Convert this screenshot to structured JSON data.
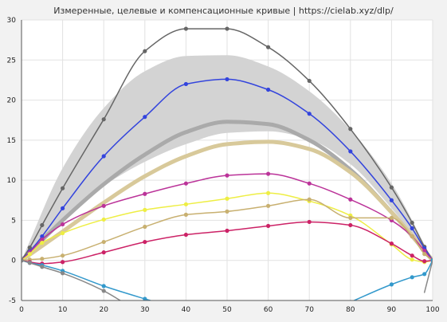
{
  "chart_data": {
    "type": "line",
    "title": "Измеренные, целевые и компенсационные кривые | https://cielab.xyz/dlp/",
    "xlabel": "",
    "ylabel": "",
    "xlim": [
      0,
      100
    ],
    "ylim": [
      -5,
      30
    ],
    "x_ticks": [
      0,
      10,
      20,
      30,
      40,
      50,
      60,
      70,
      80,
      90,
      100
    ],
    "y_ticks": [
      -5,
      0,
      5,
      10,
      15,
      20,
      25,
      30
    ],
    "grid": true,
    "band": {
      "x": [
        0,
        10,
        20,
        30,
        40,
        50,
        60,
        70,
        80,
        90,
        100
      ],
      "upper": [
        0,
        11.5,
        19,
        23.6,
        25.5,
        25.6,
        24.2,
        21.1,
        16.3,
        9.6,
        0
      ],
      "lower": [
        0,
        5.3,
        9.3,
        12.3,
        14.5,
        15.9,
        16.1,
        15.1,
        12.0,
        6.5,
        0
      ],
      "color": "#d3d3d3"
    },
    "series": [
      {
        "x": [
          0,
          10,
          20,
          30,
          40,
          50,
          60,
          70,
          80,
          90,
          100
        ],
        "y": [
          0,
          5.0,
          9.5,
          13.2,
          16.0,
          17.3,
          17.0,
          15.0,
          11.3,
          6.0,
          0
        ],
        "color": "#aaaaaa",
        "width": 5,
        "markers": false
      },
      {
        "x": [
          0,
          10,
          20,
          30,
          40,
          50,
          60,
          70,
          80,
          90,
          100
        ],
        "y": [
          0,
          3.6,
          7.2,
          10.5,
          13.0,
          14.5,
          14.8,
          13.9,
          11.0,
          6.0,
          0
        ],
        "color": "#d8c99a",
        "width": 5,
        "markers": false
      },
      {
        "x": [
          0,
          2,
          5,
          10,
          20,
          30,
          40,
          50,
          60,
          70,
          80,
          90,
          95,
          98,
          100
        ],
        "y": [
          0,
          1.6,
          4.4,
          9.0,
          17.6,
          26.1,
          28.9,
          28.9,
          26.6,
          22.4,
          16.4,
          9.1,
          4.7,
          1.7,
          0
        ],
        "color": "#666666",
        "width": 1.5,
        "markers": true
      },
      {
        "x": [
          0,
          2,
          5,
          10,
          20,
          30,
          40,
          50,
          60,
          70,
          80,
          90,
          95,
          98,
          100
        ],
        "y": [
          0,
          1.1,
          3.0,
          6.5,
          13.0,
          17.9,
          22.0,
          22.6,
          21.3,
          18.3,
          13.6,
          7.5,
          4.0,
          1.5,
          0
        ],
        "color": "#3344dd",
        "width": 1.5,
        "markers": true
      },
      {
        "x": [
          0,
          2,
          5,
          10,
          20,
          30,
          40,
          50,
          60,
          70,
          80,
          90,
          95,
          98,
          100
        ],
        "y": [
          0,
          1.0,
          2.6,
          4.5,
          6.8,
          8.3,
          9.6,
          10.6,
          10.8,
          9.6,
          7.6,
          5.0,
          3.0,
          1.2,
          0
        ],
        "color": "#bb3399",
        "width": 1.5,
        "markers": true
      },
      {
        "x": [
          0,
          2,
          5,
          10,
          20,
          30,
          40,
          50,
          60,
          70,
          80,
          90,
          95,
          98,
          100
        ],
        "y": [
          0,
          0.8,
          2.2,
          3.4,
          5.1,
          6.3,
          7.0,
          7.7,
          8.4,
          7.4,
          5.6,
          2.0,
          0.1,
          -0.2,
          0
        ],
        "color": "#eeee44",
        "width": 1.5,
        "markers": true
      },
      {
        "x": [
          0,
          2,
          5,
          10,
          20,
          30,
          40,
          50,
          60,
          70,
          80,
          90,
          95,
          98,
          100
        ],
        "y": [
          0,
          0.1,
          0.2,
          0.6,
          2.3,
          4.2,
          5.7,
          6.1,
          6.8,
          7.6,
          5.3,
          5.3,
          3.0,
          0.8,
          0
        ],
        "color": "#c8b070",
        "width": 1.5,
        "markers": true
      },
      {
        "x": [
          0,
          2,
          5,
          10,
          20,
          30,
          40,
          50,
          60,
          70,
          80,
          90,
          95,
          98,
          100
        ],
        "y": [
          0,
          -0.2,
          -0.4,
          -0.2,
          1.0,
          2.3,
          3.2,
          3.7,
          4.3,
          4.8,
          4.4,
          2.1,
          0.6,
          -0.1,
          0
        ],
        "color": "#cc2266",
        "width": 1.5,
        "markers": true
      },
      {
        "x": [
          0,
          2,
          5,
          10,
          20,
          30,
          40
        ],
        "y": [
          0,
          -0.3,
          -0.6,
          -1.3,
          -3.2,
          -4.8,
          -6.3
        ],
        "color": "#3399cc",
        "width": 1.5,
        "markers": true
      },
      {
        "x": [
          80,
          90,
          95,
          98,
          100
        ],
        "y": [
          -5.2,
          -3.0,
          -2.1,
          -1.7,
          0
        ],
        "color": "#3399cc",
        "width": 1.5,
        "markers": true
      },
      {
        "x": [
          0,
          2,
          5,
          10,
          20,
          25
        ],
        "y": [
          0,
          -0.3,
          -0.8,
          -1.6,
          -3.8,
          -5.3
        ],
        "color": "#888888",
        "width": 1.5,
        "markers": true
      },
      {
        "x": [
          98,
          100
        ],
        "y": [
          -4.0,
          0
        ],
        "color": "#888888",
        "width": 1.5,
        "markers": false
      }
    ]
  }
}
